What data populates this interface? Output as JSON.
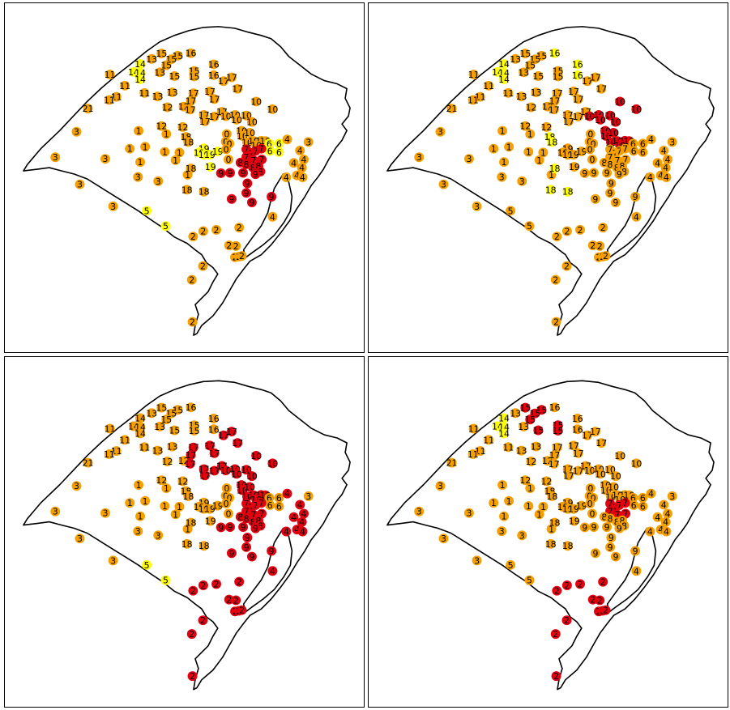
{
  "colors": {
    "orange": "#F5A000",
    "yellow": "#FFFF00",
    "red": "#E3000F",
    "outline": "#000000",
    "label": "#000000"
  },
  "stations": [
    {
      "id": "15",
      "lon": 0.43,
      "lat": 0.087
    },
    {
      "id": "15",
      "lon": 0.48,
      "lat": 0.094
    },
    {
      "id": "16",
      "lon": 0.52,
      "lat": 0.086
    },
    {
      "id": "13",
      "lon": 0.4,
      "lat": 0.104
    },
    {
      "id": "15",
      "lon": 0.46,
      "lat": 0.105
    },
    {
      "id": "14",
      "lon": 0.365,
      "lat": 0.12
    },
    {
      "id": "14",
      "lon": 0.345,
      "lat": 0.145
    },
    {
      "id": "14",
      "lon": 0.365,
      "lat": 0.148
    },
    {
      "id": "14",
      "lon": 0.365,
      "lat": 0.168
    },
    {
      "id": "15",
      "lon": 0.445,
      "lat": 0.124
    },
    {
      "id": "13",
      "lon": 0.425,
      "lat": 0.146
    },
    {
      "id": "15",
      "lon": 0.47,
      "lat": 0.158
    },
    {
      "id": "15",
      "lon": 0.53,
      "lat": 0.142
    },
    {
      "id": "15",
      "lon": 0.53,
      "lat": 0.159
    },
    {
      "id": "16",
      "lon": 0.59,
      "lat": 0.121
    },
    {
      "id": "16",
      "lon": 0.59,
      "lat": 0.155
    },
    {
      "id": "17",
      "lon": 0.62,
      "lat": 0.174
    },
    {
      "id": "17",
      "lon": 0.645,
      "lat": 0.162
    },
    {
      "id": "11",
      "lon": 0.272,
      "lat": 0.153
    },
    {
      "id": "11",
      "lon": 0.318,
      "lat": 0.188
    },
    {
      "id": "11",
      "lon": 0.292,
      "lat": 0.223
    },
    {
      "id": "11",
      "lon": 0.27,
      "lat": 0.233
    },
    {
      "id": "11",
      "lon": 0.378,
      "lat": 0.211
    },
    {
      "id": "13",
      "lon": 0.418,
      "lat": 0.222
    },
    {
      "id": "13",
      "lon": 0.463,
      "lat": 0.209
    },
    {
      "id": "17",
      "lon": 0.528,
      "lat": 0.212
    },
    {
      "id": "17",
      "lon": 0.578,
      "lat": 0.206
    },
    {
      "id": "17",
      "lon": 0.592,
      "lat": 0.23
    },
    {
      "id": "17",
      "lon": 0.663,
      "lat": 0.198
    },
    {
      "id": "12",
      "lon": 0.448,
      "lat": 0.256
    },
    {
      "id": "12",
      "lon": 0.498,
      "lat": 0.254
    },
    {
      "id": "17",
      "lon": 0.52,
      "lat": 0.236
    },
    {
      "id": "17",
      "lon": 0.518,
      "lat": 0.263
    },
    {
      "id": "17",
      "lon": 0.56,
      "lat": 0.28
    },
    {
      "id": "17",
      "lon": 0.592,
      "lat": 0.285
    },
    {
      "id": "17",
      "lon": 0.563,
      "lat": 0.3
    },
    {
      "id": "17",
      "lon": 0.615,
      "lat": 0.27
    },
    {
      "id": "10",
      "lon": 0.627,
      "lat": 0.284
    },
    {
      "id": "10",
      "lon": 0.655,
      "lat": 0.28
    },
    {
      "id": "10",
      "lon": 0.66,
      "lat": 0.295
    },
    {
      "id": "10",
      "lon": 0.69,
      "lat": 0.282
    },
    {
      "id": "10",
      "lon": 0.707,
      "lat": 0.302
    },
    {
      "id": "10",
      "lon": 0.72,
      "lat": 0.238
    },
    {
      "id": "10",
      "lon": 0.77,
      "lat": 0.262
    },
    {
      "id": "21",
      "lon": 0.205,
      "lat": 0.26
    },
    {
      "id": "1",
      "lon": 0.36,
      "lat": 0.33
    },
    {
      "id": "12",
      "lon": 0.43,
      "lat": 0.315
    },
    {
      "id": "1",
      "lon": 0.445,
      "lat": 0.34
    },
    {
      "id": "12",
      "lon": 0.495,
      "lat": 0.318
    },
    {
      "id": "18",
      "lon": 0.505,
      "lat": 0.349
    },
    {
      "id": "18",
      "lon": 0.512,
      "lat": 0.365
    },
    {
      "id": "1",
      "lon": 0.38,
      "lat": 0.38
    },
    {
      "id": "1",
      "lon": 0.333,
      "lat": 0.386
    },
    {
      "id": "1",
      "lon": 0.44,
      "lat": 0.396
    },
    {
      "id": "1",
      "lon": 0.485,
      "lat": 0.398
    },
    {
      "id": "1",
      "lon": 0.365,
      "lat": 0.428
    },
    {
      "id": "1",
      "lon": 0.473,
      "lat": 0.422
    },
    {
      "id": "19",
      "lon": 0.56,
      "lat": 0.385
    },
    {
      "id": "19",
      "lon": 0.545,
      "lat": 0.398
    },
    {
      "id": "19",
      "lon": 0.56,
      "lat": 0.405
    },
    {
      "id": "19",
      "lon": 0.578,
      "lat": 0.405
    },
    {
      "id": "19",
      "lon": 0.602,
      "lat": 0.395
    },
    {
      "id": "19",
      "lon": 0.58,
      "lat": 0.443
    },
    {
      "id": "3",
      "lon": 0.258,
      "lat": 0.418
    },
    {
      "id": "3",
      "lon": 0.358,
      "lat": 0.475
    },
    {
      "id": "3",
      "lon": 0.42,
      "lat": 0.488
    },
    {
      "id": "1",
      "lon": 0.51,
      "lat": 0.468
    },
    {
      "id": "18",
      "lon": 0.52,
      "lat": 0.448
    },
    {
      "id": "18",
      "lon": 0.508,
      "lat": 0.515
    },
    {
      "id": "18",
      "lon": 0.56,
      "lat": 0.521
    },
    {
      "id": "0",
      "lon": 0.63,
      "lat": 0.34
    },
    {
      "id": "0",
      "lon": 0.627,
      "lat": 0.364
    },
    {
      "id": "0",
      "lon": 0.638,
      "lat": 0.37
    },
    {
      "id": "0",
      "lon": 0.628,
      "lat": 0.388
    },
    {
      "id": "0",
      "lon": 0.635,
      "lat": 0.42
    },
    {
      "id": "10",
      "lon": 0.675,
      "lat": 0.33
    },
    {
      "id": "10",
      "lon": 0.677,
      "lat": 0.346
    },
    {
      "id": "10",
      "lon": 0.7,
      "lat": 0.336
    },
    {
      "id": "10",
      "lon": 0.692,
      "lat": 0.366
    },
    {
      "id": "10",
      "lon": 0.712,
      "lat": 0.362
    },
    {
      "id": "10",
      "lon": 0.735,
      "lat": 0.361
    },
    {
      "id": "10",
      "lon": 0.748,
      "lat": 0.362
    },
    {
      "id": "10",
      "lon": 0.72,
      "lat": 0.375
    },
    {
      "id": "6",
      "lon": 0.76,
      "lat": 0.37
    },
    {
      "id": "6",
      "lon": 0.762,
      "lat": 0.393
    },
    {
      "id": "6",
      "lon": 0.79,
      "lat": 0.37
    },
    {
      "id": "6",
      "lon": 0.79,
      "lat": 0.397
    },
    {
      "id": "7",
      "lon": 0.69,
      "lat": 0.388
    },
    {
      "id": "7",
      "lon": 0.705,
      "lat": 0.4
    },
    {
      "id": "7",
      "lon": 0.718,
      "lat": 0.393
    },
    {
      "id": "7",
      "lon": 0.736,
      "lat": 0.386
    },
    {
      "id": "7",
      "lon": 0.69,
      "lat": 0.412
    },
    {
      "id": "7",
      "lon": 0.712,
      "lat": 0.423
    },
    {
      "id": "7",
      "lon": 0.737,
      "lat": 0.42
    },
    {
      "id": "8",
      "lon": 0.672,
      "lat": 0.43
    },
    {
      "id": "8",
      "lon": 0.69,
      "lat": 0.435
    },
    {
      "id": "8",
      "lon": 0.71,
      "lat": 0.445
    },
    {
      "id": "8",
      "lon": 0.727,
      "lat": 0.441
    },
    {
      "id": "8",
      "lon": 0.733,
      "lat": 0.458
    },
    {
      "id": "9",
      "lon": 0.68,
      "lat": 0.462
    },
    {
      "id": "9",
      "lon": 0.718,
      "lat": 0.466
    },
    {
      "id": "9",
      "lon": 0.612,
      "lat": 0.463
    },
    {
      "id": "9",
      "lon": 0.64,
      "lat": 0.462
    },
    {
      "id": "9",
      "lon": 0.693,
      "lat": 0.495
    },
    {
      "id": "9",
      "lon": 0.69,
      "lat": 0.525
    },
    {
      "id": "9",
      "lon": 0.707,
      "lat": 0.555
    },
    {
      "id": "9",
      "lon": 0.645,
      "lat": 0.544
    },
    {
      "id": "9",
      "lon": 0.767,
      "lat": 0.537
    },
    {
      "id": "4",
      "lon": 0.815,
      "lat": 0.357
    },
    {
      "id": "4",
      "lon": 0.854,
      "lat": 0.392
    },
    {
      "id": "4",
      "lon": 0.866,
      "lat": 0.42
    },
    {
      "id": "4",
      "lon": 0.835,
      "lat": 0.431
    },
    {
      "id": "4",
      "lon": 0.86,
      "lat": 0.446
    },
    {
      "id": "4",
      "lon": 0.812,
      "lat": 0.476
    },
    {
      "id": "4",
      "lon": 0.845,
      "lat": 0.47
    },
    {
      "id": "4",
      "lon": 0.862,
      "lat": 0.476
    },
    {
      "id": "4",
      "lon": 0.77,
      "lat": 0.6
    },
    {
      "id": "3",
      "lon": 0.88,
      "lat": 0.365
    },
    {
      "id": "3",
      "lon": 0.17,
      "lat": 0.333
    },
    {
      "id": "3",
      "lon": 0.105,
      "lat": 0.413
    },
    {
      "id": "3",
      "lon": 0.18,
      "lat": 0.498
    },
    {
      "id": "3",
      "lon": 0.282,
      "lat": 0.567
    },
    {
      "id": "5",
      "lon": 0.385,
      "lat": 0.581
    },
    {
      "id": "5",
      "lon": 0.443,
      "lat": 0.629
    },
    {
      "id": "2",
      "lon": 0.527,
      "lat": 0.662
    },
    {
      "id": "2",
      "lon": 0.558,
      "lat": 0.645
    },
    {
      "id": "2",
      "lon": 0.598,
      "lat": 0.641
    },
    {
      "id": "2",
      "lon": 0.668,
      "lat": 0.634
    },
    {
      "id": "2",
      "lon": 0.637,
      "lat": 0.69
    },
    {
      "id": "2",
      "lon": 0.658,
      "lat": 0.692
    },
    {
      "id": "2",
      "lon": 0.557,
      "lat": 0.755
    },
    {
      "id": "2",
      "lon": 0.523,
      "lat": 0.798
    },
    {
      "id": "2",
      "lon": 0.525,
      "lat": 0.93
    },
    {
      "id": "2",
      "lon": 0.655,
      "lat": 0.727
    },
    {
      "id": "2",
      "lon": 0.667,
      "lat": 0.725
    },
    {
      "id": "2",
      "lon": 0.676,
      "lat": 0.723
    }
  ],
  "panels": [
    {
      "colors": {
        "15": "orange",
        "16": "orange",
        "13": "orange",
        "14": "yellow",
        "11": "orange",
        "17": "orange",
        "12": "orange",
        "10": "orange",
        "21": "orange",
        "1": "orange",
        "18": "orange",
        "19": "yellow",
        "3": "orange",
        "0": "orange",
        "6": "yellow",
        "7": "red",
        "8": "red",
        "9": "red",
        "4": "orange",
        "5": "yellow",
        "2": "orange"
      }
    },
    {
      "colors": {
        "15": "orange",
        "16": "yellow",
        "13": "orange",
        "14": "yellow",
        "11": "orange",
        "17": "orange",
        "12": "orange",
        "10": "red",
        "21": "orange",
        "1": "orange",
        "18": "yellow",
        "19": "orange",
        "3": "orange",
        "0": "orange",
        "6": "orange",
        "7": "orange",
        "8": "orange",
        "9": "orange",
        "4": "orange",
        "5": "orange",
        "2": "orange"
      }
    },
    {
      "colors": {
        "15": "orange",
        "16": "orange",
        "13": "orange",
        "14": "orange",
        "11": "orange",
        "17": "red",
        "12": "orange",
        "10": "red",
        "21": "orange",
        "1": "orange",
        "18": "orange",
        "19": "orange",
        "3": "orange",
        "0": "orange",
        "6": "orange",
        "7": "red",
        "8": "red",
        "9": "red",
        "4": "red",
        "5": "yellow",
        "2": "red"
      }
    },
    {
      "colors": {
        "15": "red",
        "16": "orange",
        "13": "orange",
        "14": "yellow",
        "11": "orange",
        "17": "orange",
        "12": "orange",
        "10": "orange",
        "21": "orange",
        "1": "orange",
        "18": "orange",
        "19": "orange",
        "3": "orange",
        "0": "orange",
        "6": "orange",
        "7": "red",
        "8": "orange",
        "9": "orange",
        "4": "orange",
        "5": "orange",
        "2": "red"
      }
    }
  ]
}
